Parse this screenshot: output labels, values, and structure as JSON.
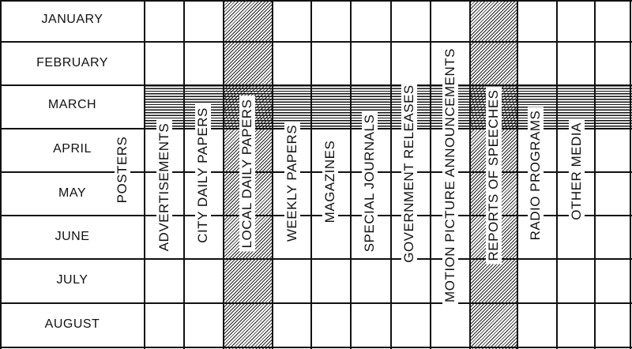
{
  "months": [
    "JANUARY",
    "FEBRUARY",
    "MARCH",
    "APRIL",
    "MAY",
    "JUNE",
    "JULY",
    "AUGUST"
  ],
  "media": [
    "POSTERS",
    "ADVERTISEMENTS",
    "CITY DAILY PAPERS",
    "LOCAL DAILY PAPERS",
    "WEEKLY PAPERS",
    "MAGAZINES",
    "SPECIAL JOURNALS",
    "GOVERNMENT RELEASES",
    "MOTION PICTURE ANNOUNCEMENTS",
    "REPORTS OF SPEECHES",
    "RADIO PROGRAMS",
    "OTHER MEDIA"
  ],
  "highlighted_month": "MARCH",
  "highlighted_media": [
    "LOCAL DAILY PAPERS",
    "REPORTS OF SPEECHES"
  ]
}
